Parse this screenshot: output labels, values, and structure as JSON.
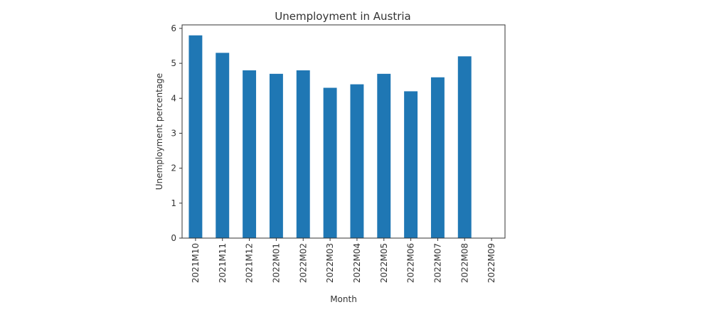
{
  "chart_data": {
    "type": "bar",
    "title": "Unemployment in Austria",
    "xlabel": "Month",
    "ylabel": "Unemployment percentage",
    "categories": [
      "2021M10",
      "2021M11",
      "2021M12",
      "2022M01",
      "2022M02",
      "2022M03",
      "2022M04",
      "2022M05",
      "2022M06",
      "2022M07",
      "2022M08",
      "2022M09"
    ],
    "values": [
      5.8,
      5.3,
      4.8,
      4.7,
      4.8,
      4.3,
      4.4,
      4.7,
      4.2,
      4.6,
      5.2,
      0
    ],
    "ylim": [
      0,
      6.1
    ],
    "yticks": [
      0,
      1,
      2,
      3,
      4,
      5,
      6
    ],
    "grid": false,
    "bar_color": "#1f77b4"
  }
}
